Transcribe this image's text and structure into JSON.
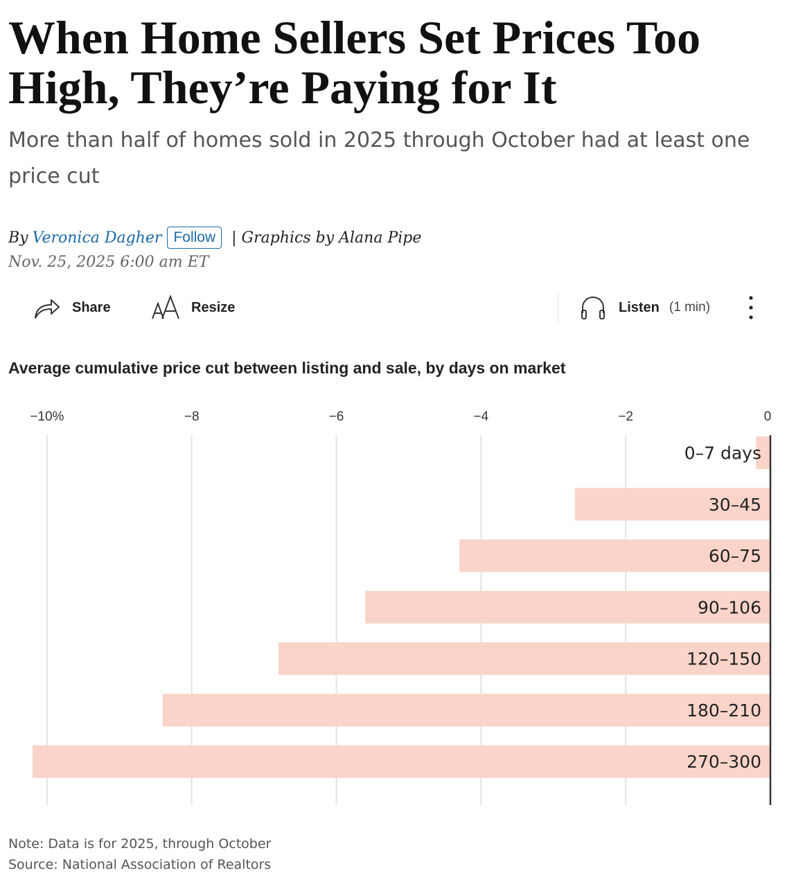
{
  "article": {
    "headline": "When Home Sellers Set Prices Too High, They’re Paying for It",
    "dek": "More than half of homes sold in 2025 through October had at least one price cut",
    "byline_prefix": "By",
    "author": "Veronica Dagher",
    "follow_label": "Follow",
    "graphics_credit": "| Graphics by Alana Pipe",
    "date": "Nov. 25, 2025 6:00 am ET"
  },
  "toolbar": {
    "share_label": "Share",
    "resize_label": "Resize",
    "listen_label": "Listen",
    "listen_duration": "(1 min)",
    "share_icon": "share-arrow-icon",
    "resize_icon": "text-resize-icon",
    "listen_icon": "headphones-icon",
    "more_icon": "more-vertical-icon"
  },
  "notes": {
    "note": "Note: Data is for 2025, through October",
    "source": "Source: National Association of Realtors"
  },
  "chart_data": {
    "type": "bar",
    "orientation": "horizontal",
    "title": "Average cumulative price cut between listing and sale, by days on market",
    "categories": [
      "0–7 days",
      "30–45",
      "60–75",
      "90–106",
      "120–150",
      "180–210",
      "270–300"
    ],
    "values": [
      -0.2,
      -2.7,
      -4.3,
      -5.6,
      -6.8,
      -8.4,
      -10.2
    ],
    "xlim": [
      -10.2,
      0
    ],
    "xticks": [
      -10,
      -8,
      -6,
      -4,
      -2,
      0
    ],
    "xtick_labels": [
      "−10%",
      "−8",
      "−6",
      "−4",
      "−2",
      "0"
    ],
    "grid": true,
    "bar_color": "#fad4c9",
    "grid_color": "#e3e3e3",
    "axis_color": "#333333"
  }
}
